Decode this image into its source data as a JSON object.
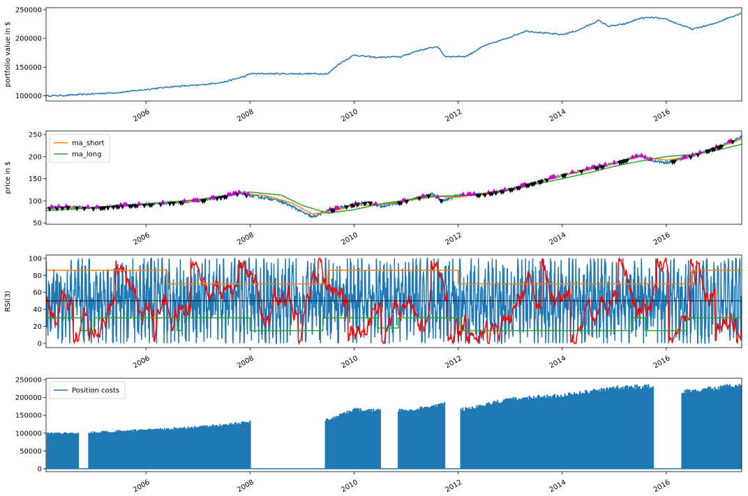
{
  "chart_data": [
    {
      "type": "line",
      "title": "",
      "ylabel": "portfolio value in $",
      "ylim": [
        91000,
        253500
      ],
      "xlim": [
        2004.08,
        2017.45
      ],
      "yticks": [
        100000,
        150000,
        200000,
        250000
      ],
      "ytick_labels": [
        "100000",
        "150000",
        "200000",
        "250000"
      ],
      "x_tick_labels": [
        "2006",
        "2008",
        "2010",
        "2012",
        "2014",
        "2016"
      ],
      "x_tick_values": [
        2006,
        2008,
        2010,
        2012,
        2014,
        2016
      ],
      "legend": [],
      "series": [
        {
          "color": "#1f77b4",
          "x": [
            2004.08,
            2004.5,
            2005.0,
            2005.5,
            2006.0,
            2006.5,
            2007.0,
            2007.5,
            2007.9,
            2008.0,
            2009.5,
            2009.7,
            2010.0,
            2010.4,
            2010.9,
            2011.2,
            2011.6,
            2011.75,
            2012.15,
            2012.5,
            2012.9,
            2013.3,
            2013.7,
            2014.0,
            2014.3,
            2014.7,
            2014.9,
            2015.2,
            2015.5,
            2015.75,
            2016.0,
            2016.5,
            2016.9,
            2017.2,
            2017.45
          ],
          "y": [
            100000,
            101000,
            103500,
            106000,
            111000,
            116000,
            118500,
            124000,
            134000,
            138500,
            138500,
            155000,
            171000,
            167000,
            168000,
            178000,
            186000,
            168500,
            168500,
            187000,
            199000,
            213000,
            209000,
            206500,
            214000,
            231000,
            221000,
            225000,
            235000,
            236500,
            233000,
            216000,
            225000,
            236000,
            244000
          ]
        }
      ]
    },
    {
      "type": "line",
      "title": "",
      "ylabel": "price in $",
      "ylim": [
        47,
        258
      ],
      "xlim": [
        2004.08,
        2017.45
      ],
      "yticks": [
        50,
        100,
        150,
        200,
        250
      ],
      "ytick_labels": [
        "50",
        "100",
        "150",
        "200",
        "250"
      ],
      "x_tick_labels": [
        "2006",
        "2008",
        "2010",
        "2012",
        "2014",
        "2016"
      ],
      "x_tick_values": [
        2006,
        2008,
        2010,
        2012,
        2014,
        2016
      ],
      "legend": [
        {
          "label": "ma_short",
          "color": "#ff7f0e"
        },
        {
          "label": "ma_long",
          "color": "#2ca02c"
        }
      ],
      "legend_position": "upper-left",
      "series": [
        {
          "name": "price",
          "color": "#1f77b4",
          "x": [
            2004.08,
            2004.5,
            2005.0,
            2005.5,
            2006.0,
            2006.5,
            2007.0,
            2007.5,
            2007.8,
            2008.0,
            2008.5,
            2008.8,
            2009.0,
            2009.2,
            2009.5,
            2010.0,
            2010.3,
            2010.5,
            2011.0,
            2011.5,
            2011.7,
            2012.0,
            2012.5,
            2013.0,
            2013.5,
            2014.0,
            2014.5,
            2015.0,
            2015.5,
            2015.7,
            2016.0,
            2016.5,
            2017.0,
            2017.45
          ],
          "y": [
            84,
            86,
            84,
            89,
            92,
            96,
            100,
            110,
            118,
            112,
            103,
            88,
            75,
            63,
            78,
            92,
            97,
            87,
            100,
            115,
            100,
            112,
            115,
            126,
            142,
            158,
            172,
            185,
            202,
            192,
            186,
            202,
            222,
            244
          ]
        },
        {
          "name": "ma_short",
          "color": "#ff7f0e",
          "x": [
            2004.08,
            2005.0,
            2006.0,
            2007.0,
            2007.8,
            2008.3,
            2008.8,
            2009.2,
            2009.6,
            2010.0,
            2010.5,
            2011.0,
            2011.6,
            2012.0,
            2012.5,
            2013.0,
            2013.5,
            2014.0,
            2014.5,
            2015.0,
            2015.5,
            2016.0,
            2016.5,
            2017.0,
            2017.45
          ],
          "y": [
            84,
            85,
            93,
            100,
            117,
            112,
            95,
            70,
            76,
            90,
            91,
            100,
            110,
            108,
            117,
            125,
            140,
            157,
            170,
            184,
            200,
            192,
            200,
            220,
            240
          ]
        },
        {
          "name": "ma_long",
          "color": "#2ca02c",
          "x": [
            2004.08,
            2005.0,
            2006.0,
            2007.0,
            2008.0,
            2008.6,
            2009.0,
            2009.5,
            2010.0,
            2010.5,
            2011.0,
            2011.5,
            2012.0,
            2012.5,
            2013.0,
            2013.5,
            2014.0,
            2014.5,
            2015.0,
            2015.5,
            2016.0,
            2016.5,
            2017.0,
            2017.45
          ],
          "y": [
            78,
            84,
            93,
            103,
            120,
            113,
            90,
            72,
            80,
            93,
            102,
            110,
            112,
            115,
            124,
            138,
            150,
            163,
            178,
            190,
            200,
            205,
            215,
            228
          ]
        }
      ],
      "markers": {
        "buy": {
          "color": "#cc00cc",
          "shape": "triangle-up"
        },
        "sell": {
          "color": "#000000",
          "shape": "triangle-down"
        }
      }
    },
    {
      "type": "line",
      "title": "",
      "ylabel": "RSI(3)",
      "ylim": [
        -5,
        104
      ],
      "xlim": [
        2004.08,
        2017.45
      ],
      "yticks": [
        0,
        20,
        40,
        60,
        80,
        100
      ],
      "ytick_labels": [
        "0",
        "20",
        "40",
        "60",
        "80",
        "100"
      ],
      "x_tick_labels": [
        "2006",
        "2008",
        "2010",
        "2012",
        "2014",
        "2016"
      ],
      "x_tick_values": [
        2006,
        2008,
        2010,
        2012,
        2014,
        2016
      ],
      "legend": [],
      "hlines": [
        {
          "color": "#000000",
          "y": 50
        }
      ],
      "series": [
        {
          "name": "upper threshold",
          "color": "#ff7f0e",
          "x": [
            2004.08,
            2006.4,
            2006.4,
            2008.0,
            2008.0,
            2009.5,
            2009.5,
            2012.0,
            2012.0,
            2015.5,
            2015.5,
            2016.5,
            2016.5,
            2017.45
          ],
          "y": [
            86,
            86,
            70,
            70,
            70,
            70,
            86,
            86,
            70,
            70,
            70,
            70,
            86,
            86
          ]
        },
        {
          "name": "lower threshold",
          "color": "#2ca02c",
          "x": [
            2004.08,
            2004.75,
            2004.75,
            2005.0,
            2005.0,
            2006.6,
            2006.6,
            2006.7,
            2006.7,
            2008.0,
            2008.0,
            2009.4,
            2009.4,
            2010.45,
            2010.45,
            2010.85,
            2010.85,
            2012.05,
            2012.05,
            2015.35,
            2015.35,
            2015.6,
            2015.6,
            2016.4,
            2016.4,
            2017.45
          ],
          "y": [
            30,
            30,
            15,
            15,
            30,
            30,
            15,
            15,
            30,
            30,
            15,
            15,
            30,
            30,
            18,
            18,
            30,
            30,
            15,
            15,
            30,
            30,
            15,
            15,
            30,
            30
          ]
        },
        {
          "name": "rsi",
          "color": "#1f77b4",
          "style": "oscillating 0-100"
        },
        {
          "name": "rsi smoothed",
          "color": "#ff0000",
          "style": "oscillating 10-100"
        }
      ]
    },
    {
      "type": "line",
      "title": "",
      "ylabel": "",
      "ylim": [
        -8000,
        254000
      ],
      "xlim": [
        2004.08,
        2017.45
      ],
      "yticks": [
        0,
        50000,
        100000,
        150000,
        200000,
        250000
      ],
      "ytick_labels": [
        "0",
        "50000",
        "100000",
        "150000",
        "200000",
        "250000"
      ],
      "x_tick_labels": [
        "2006",
        "2008",
        "2010",
        "2012",
        "2014",
        "2016"
      ],
      "x_tick_values": [
        2006,
        2008,
        2010,
        2012,
        2014,
        2016
      ],
      "legend": [
        {
          "label": "Position costs",
          "color": "#1f77b4"
        }
      ],
      "legend_position": "upper-left",
      "series": [
        {
          "name": "Position costs",
          "color": "#1f77b4",
          "active_periods": [
            [
              2004.1,
              2004.7
            ],
            [
              2004.9,
              2008.0
            ],
            [
              2009.45,
              2010.5
            ],
            [
              2010.85,
              2011.75
            ],
            [
              2012.05,
              2015.75
            ],
            [
              2016.3,
              2017.45
            ]
          ],
          "envelope_x": [
            2004.1,
            2005.0,
            2006.0,
            2007.0,
            2008.0,
            2009.5,
            2010.0,
            2010.5,
            2011.0,
            2011.75,
            2012.1,
            2013.0,
            2014.0,
            2015.0,
            2015.75,
            2016.3,
            2017.0,
            2017.45
          ],
          "envelope_y": [
            101000,
            104000,
            111000,
            119000,
            134000,
            140000,
            170000,
            167000,
            168000,
            186000,
            170000,
            200000,
            210000,
            232000,
            238000,
            222000,
            232000,
            244000
          ]
        }
      ]
    }
  ]
}
